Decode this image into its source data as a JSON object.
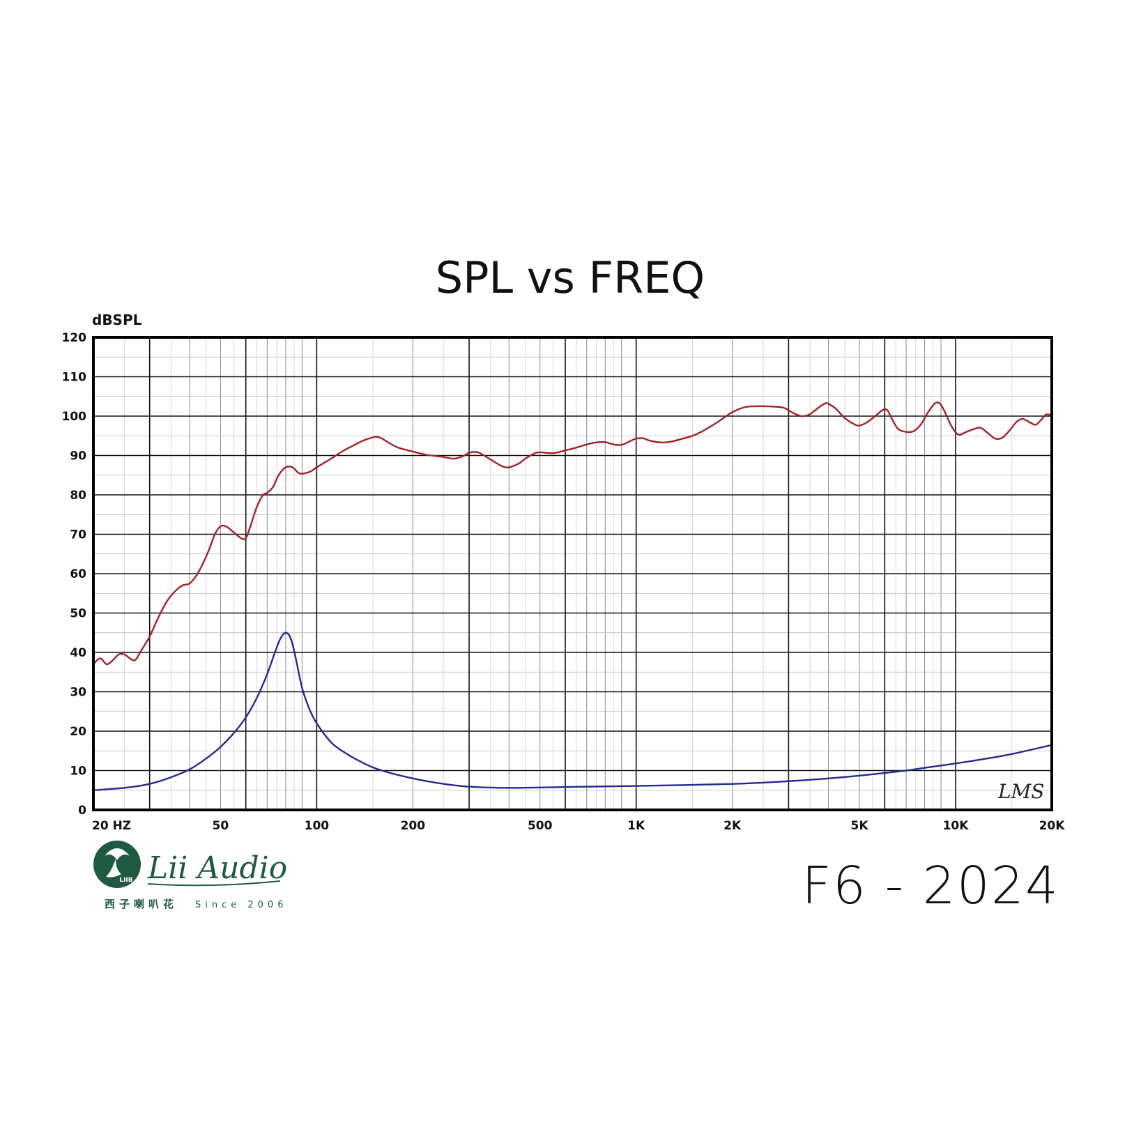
{
  "chart_data": {
    "type": "line",
    "title": "SPL vs FREQ",
    "ylabel": "dBSPL",
    "xlabel": "",
    "x_scale": "log",
    "xlim": [
      20,
      20000
    ],
    "ylim": [
      0,
      120
    ],
    "grid": true,
    "y_ticks": [
      {
        "value": 0,
        "label": "0"
      },
      {
        "value": 10,
        "label": "10"
      },
      {
        "value": 20,
        "label": "20"
      },
      {
        "value": 30,
        "label": "30"
      },
      {
        "value": 40,
        "label": "40"
      },
      {
        "value": 50,
        "label": "50"
      },
      {
        "value": 60,
        "label": "60"
      },
      {
        "value": 70,
        "label": "70"
      },
      {
        "value": 80,
        "label": "80"
      },
      {
        "value": 90,
        "label": "90"
      },
      {
        "value": 100,
        "label": "100"
      },
      {
        "value": 110,
        "label": "110"
      },
      {
        "value": 120,
        "label": "120"
      }
    ],
    "x_ticks": [
      {
        "value": 20,
        "label": "20 HZ"
      },
      {
        "value": 50,
        "label": "50"
      },
      {
        "value": 100,
        "label": "100"
      },
      {
        "value": 200,
        "label": "200"
      },
      {
        "value": 500,
        "label": "500"
      },
      {
        "value": 1000,
        "label": "1K"
      },
      {
        "value": 2000,
        "label": "2K"
      },
      {
        "value": 5000,
        "label": "5K"
      },
      {
        "value": 10000,
        "label": "10K"
      },
      {
        "value": 20000,
        "label": "20K"
      }
    ],
    "series": [
      {
        "color": "#a3202a",
        "points": [
          [
            20,
            37
          ],
          [
            21,
            38.5
          ],
          [
            22,
            37
          ],
          [
            23,
            38
          ],
          [
            24,
            39.5
          ],
          [
            25,
            39.5
          ],
          [
            26,
            38.5
          ],
          [
            27,
            38
          ],
          [
            28,
            40
          ],
          [
            29,
            42
          ],
          [
            30,
            44
          ],
          [
            32,
            49
          ],
          [
            34,
            53
          ],
          [
            36,
            55.5
          ],
          [
            38,
            57
          ],
          [
            40,
            57.5
          ],
          [
            42,
            59.5
          ],
          [
            44,
            62.5
          ],
          [
            46,
            66
          ],
          [
            48,
            70
          ],
          [
            50,
            72
          ],
          [
            52,
            72
          ],
          [
            55,
            70.5
          ],
          [
            58,
            69
          ],
          [
            60,
            69
          ],
          [
            62,
            72
          ],
          [
            65,
            77
          ],
          [
            68,
            80
          ],
          [
            70,
            80.5
          ],
          [
            73,
            82
          ],
          [
            76,
            85
          ],
          [
            80,
            87
          ],
          [
            84,
            87
          ],
          [
            88,
            85.5
          ],
          [
            92,
            85.5
          ],
          [
            96,
            86
          ],
          [
            100,
            87
          ],
          [
            110,
            89
          ],
          [
            120,
            91
          ],
          [
            130,
            92.5
          ],
          [
            140,
            93.8
          ],
          [
            150,
            94.6
          ],
          [
            155,
            94.7
          ],
          [
            160,
            94.3
          ],
          [
            170,
            93
          ],
          [
            180,
            92
          ],
          [
            200,
            91
          ],
          [
            220,
            90.2
          ],
          [
            250,
            89.6
          ],
          [
            270,
            89.2
          ],
          [
            290,
            90
          ],
          [
            300,
            90.7
          ],
          [
            320,
            90.8
          ],
          [
            350,
            89
          ],
          [
            380,
            87.3
          ],
          [
            400,
            87
          ],
          [
            430,
            88
          ],
          [
            450,
            89.2
          ],
          [
            480,
            90.5
          ],
          [
            500,
            90.8
          ],
          [
            550,
            90.6
          ],
          [
            600,
            91.3
          ],
          [
            650,
            92
          ],
          [
            700,
            92.8
          ],
          [
            750,
            93.3
          ],
          [
            800,
            93.4
          ],
          [
            850,
            92.8
          ],
          [
            900,
            92.7
          ],
          [
            950,
            93.5
          ],
          [
            1000,
            94.3
          ],
          [
            1050,
            94.4
          ],
          [
            1100,
            93.8
          ],
          [
            1200,
            93.3
          ],
          [
            1300,
            93.6
          ],
          [
            1400,
            94.3
          ],
          [
            1500,
            95
          ],
          [
            1600,
            96
          ],
          [
            1800,
            98.5
          ],
          [
            2000,
            101
          ],
          [
            2200,
            102.3
          ],
          [
            2400,
            102.5
          ],
          [
            2700,
            102.4
          ],
          [
            2900,
            102.1
          ],
          [
            3100,
            100.8
          ],
          [
            3300,
            100
          ],
          [
            3500,
            100.5
          ],
          [
            3700,
            102
          ],
          [
            3900,
            103.2
          ],
          [
            4000,
            103.1
          ],
          [
            4200,
            102
          ],
          [
            4500,
            99.5
          ],
          [
            4800,
            98
          ],
          [
            5000,
            97.6
          ],
          [
            5300,
            98.5
          ],
          [
            5600,
            100
          ],
          [
            5900,
            101.5
          ],
          [
            6100,
            101.6
          ],
          [
            6300,
            99.5
          ],
          [
            6600,
            96.8
          ],
          [
            7000,
            96
          ],
          [
            7400,
            96.2
          ],
          [
            7800,
            98
          ],
          [
            8200,
            101
          ],
          [
            8600,
            103.2
          ],
          [
            8900,
            103.3
          ],
          [
            9200,
            101.5
          ],
          [
            9700,
            97.5
          ],
          [
            10200,
            95.3
          ],
          [
            10800,
            96
          ],
          [
            11500,
            96.8
          ],
          [
            12000,
            97
          ],
          [
            12700,
            95.5
          ],
          [
            13300,
            94.3
          ],
          [
            14000,
            94.5
          ],
          [
            14800,
            96.5
          ],
          [
            15500,
            98.5
          ],
          [
            16200,
            99.3
          ],
          [
            17000,
            98.5
          ],
          [
            17800,
            97.8
          ],
          [
            18500,
            99
          ],
          [
            19200,
            100.4
          ],
          [
            20000,
            100.2
          ]
        ]
      },
      {
        "color": "#232a8c",
        "points": [
          [
            20,
            5
          ],
          [
            25,
            5.6
          ],
          [
            30,
            6.6
          ],
          [
            35,
            8.3
          ],
          [
            40,
            10.3
          ],
          [
            45,
            13
          ],
          [
            50,
            16
          ],
          [
            55,
            19.5
          ],
          [
            60,
            23.5
          ],
          [
            65,
            28.5
          ],
          [
            70,
            34.5
          ],
          [
            74,
            40
          ],
          [
            77,
            43.5
          ],
          [
            80,
            45
          ],
          [
            83,
            43.5
          ],
          [
            86,
            38.5
          ],
          [
            90,
            31
          ],
          [
            95,
            25.5
          ],
          [
            100,
            22
          ],
          [
            110,
            17.5
          ],
          [
            120,
            15
          ],
          [
            140,
            11.9
          ],
          [
            160,
            10
          ],
          [
            200,
            8
          ],
          [
            250,
            6.6
          ],
          [
            300,
            5.9
          ],
          [
            400,
            5.6
          ],
          [
            500,
            5.7
          ],
          [
            700,
            5.9
          ],
          [
            1000,
            6.1
          ],
          [
            2000,
            6.6
          ],
          [
            3000,
            7.3
          ],
          [
            4000,
            8
          ],
          [
            5000,
            8.7
          ],
          [
            7000,
            10
          ],
          [
            8000,
            10.7
          ],
          [
            10000,
            11.8
          ],
          [
            12000,
            12.8
          ],
          [
            15000,
            14.2
          ],
          [
            20000,
            16.5
          ]
        ]
      }
    ]
  },
  "model_label": "F6 - 2024",
  "brand": {
    "name": "Lii Audio",
    "chinese": "西子喇叭花",
    "since": "Since 2006",
    "emblem_text": "LIIB",
    "color": "#1f5a40"
  },
  "watermark": "LMS"
}
